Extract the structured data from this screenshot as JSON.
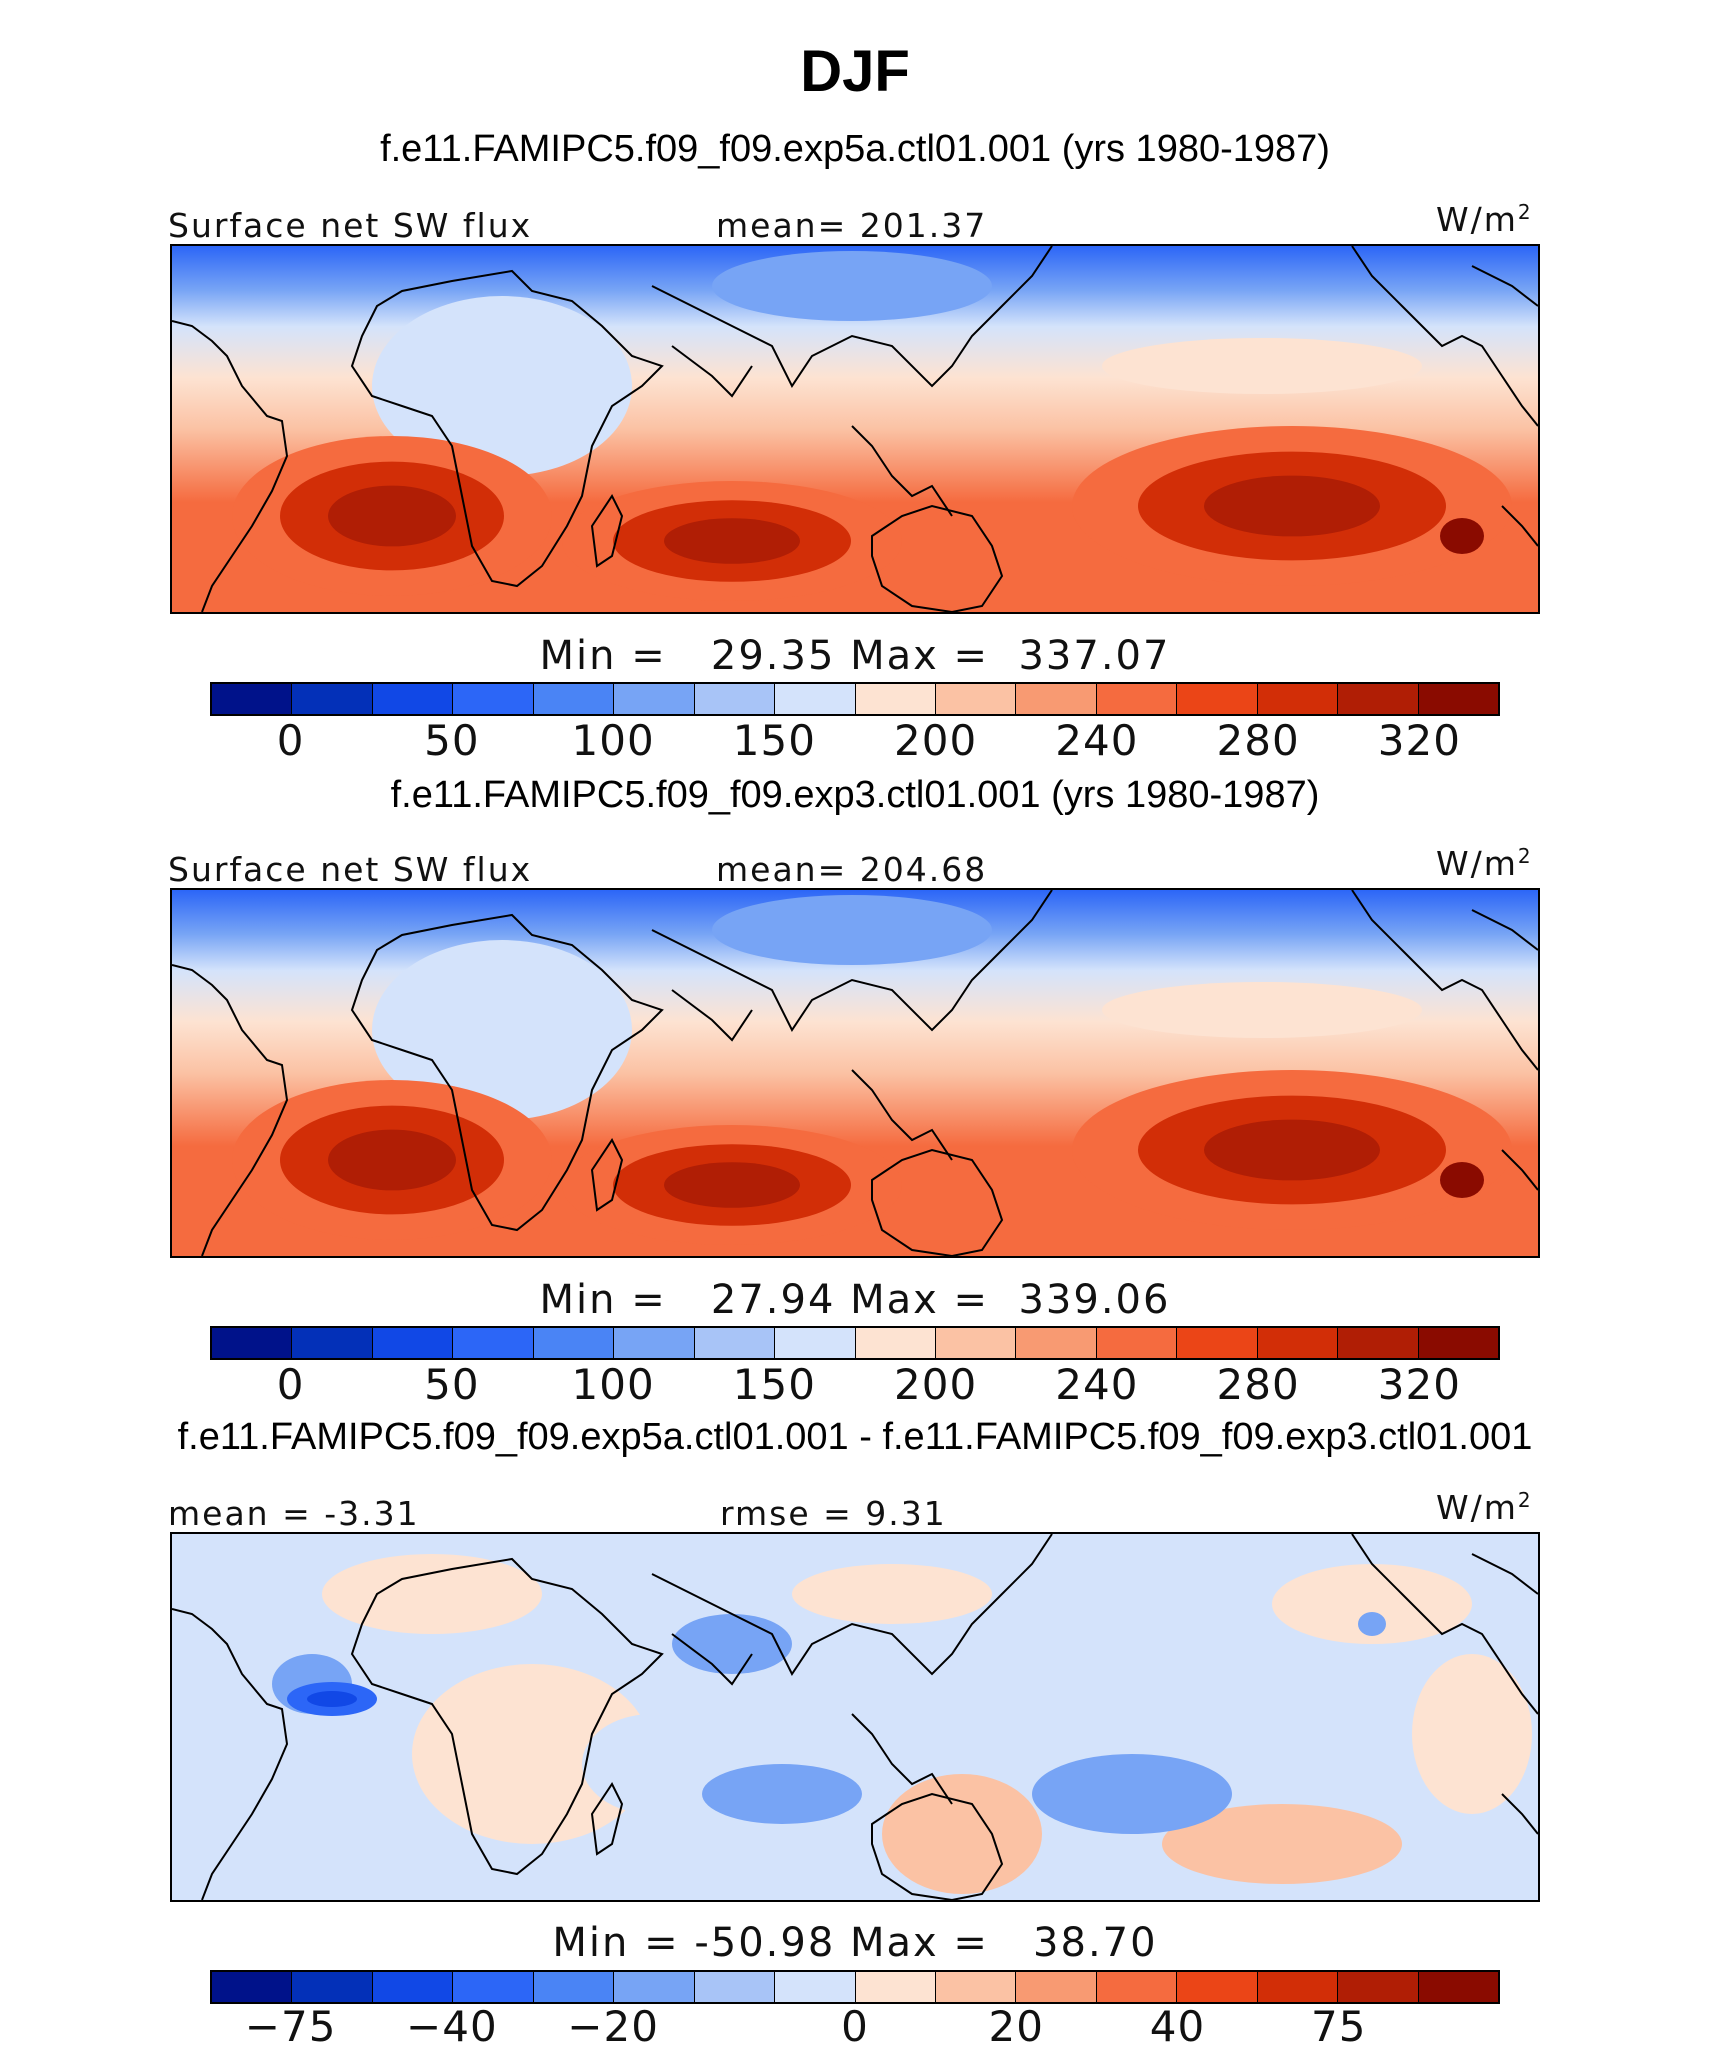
{
  "title": "DJF",
  "panels": [
    {
      "run_title": "f.e11.FAMIPC5.f09_f09.exp5a.ctl01.001 (yrs 1980-1987)",
      "left_label": "Surface net SW flux",
      "center_label": "mean= 201.37",
      "units": "W/m",
      "units_sup": "2",
      "minmax": "Min =   29.35 Max =  337.07",
      "ticks": [
        "0",
        "50",
        "100",
        "150",
        "200",
        "240",
        "280",
        "320"
      ],
      "mean": 201.37,
      "min": 29.35,
      "max": 337.07
    },
    {
      "run_title": "f.e11.FAMIPC5.f09_f09.exp3.ctl01.001 (yrs 1980-1987)",
      "left_label": "Surface net SW flux",
      "center_label": "mean= 204.68",
      "units": "W/m",
      "units_sup": "2",
      "minmax": "Min =   27.94 Max =  339.06",
      "ticks": [
        "0",
        "50",
        "100",
        "150",
        "200",
        "240",
        "280",
        "320"
      ],
      "mean": 204.68,
      "min": 27.94,
      "max": 339.06
    },
    {
      "run_title": "f.e11.FAMIPC5.f09_f09.exp5a.ctl01.001 - f.e11.FAMIPC5.f09_f09.exp3.ctl01.001",
      "left_label": "mean =  -3.31",
      "center_label": "rmse =   9.31",
      "units": "W/m",
      "units_sup": "2",
      "minmax": "Min = -50.98 Max =   38.70",
      "ticks": [
        "-75",
        "-40",
        "-20",
        "0",
        "20",
        "40",
        "75"
      ],
      "mean": -3.31,
      "rmse": 9.31,
      "min": -50.98,
      "max": 38.7
    }
  ],
  "colorbar": [
    "#00128a",
    "#0330b8",
    "#1148e6",
    "#2c66f7",
    "#4a84f5",
    "#77a4f5",
    "#a8c4f7",
    "#d4e3fb",
    "#fde3d2",
    "#fbc2a4",
    "#f89a72",
    "#f56b3f",
    "#eb4517",
    "#d22e07",
    "#b01e05",
    "#8a0b00"
  ],
  "map_colors": {
    "land_outline": "#000000",
    "deep_blue": "#2c66f7",
    "blue": "#77a4f5",
    "light_blue": "#d4e3fb",
    "cream": "#fde3d2",
    "peach": "#fbc2a4",
    "orange": "#f56b3f",
    "red": "#d22e07",
    "dark_red": "#b01e05"
  }
}
